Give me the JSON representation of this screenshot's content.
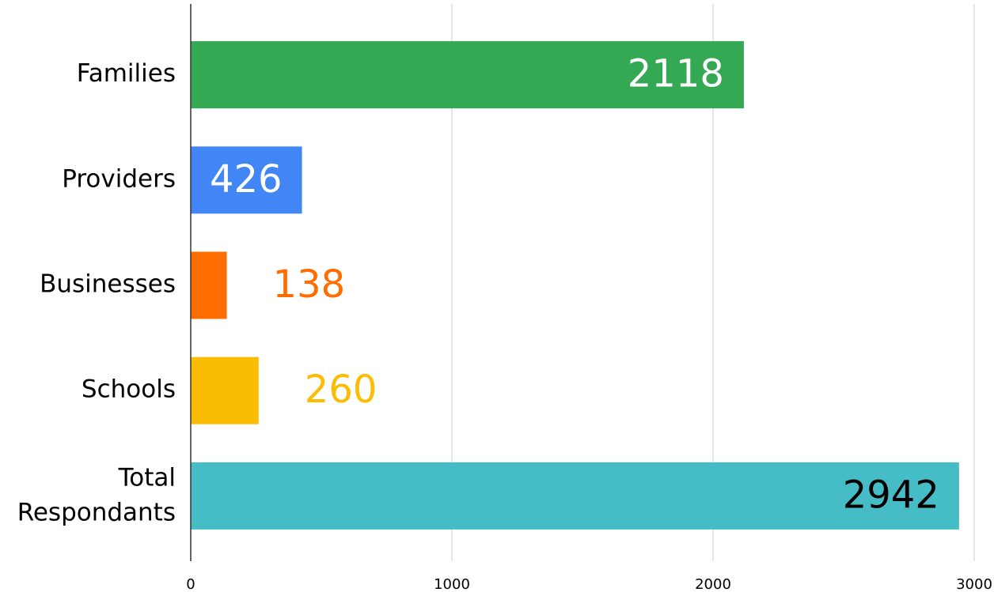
{
  "chart_data": {
    "type": "bar",
    "orientation": "horizontal",
    "categories": [
      "Families",
      "Providers",
      "Businesses",
      "Schools",
      "Total Respondants"
    ],
    "values": [
      2118,
      426,
      138,
      260,
      2942
    ],
    "colors": [
      "#34a853",
      "#4285f4",
      "#ff6d01",
      "#fbbc04",
      "#46bdc6"
    ],
    "value_label_colors": [
      "#ffffff",
      "#ffffff",
      "#ff6d01",
      "#fbbc04",
      "#000000"
    ],
    "xlim": [
      0,
      3000
    ],
    "xticks": [
      0,
      1000,
      2000,
      3000
    ],
    "grid": true
  }
}
